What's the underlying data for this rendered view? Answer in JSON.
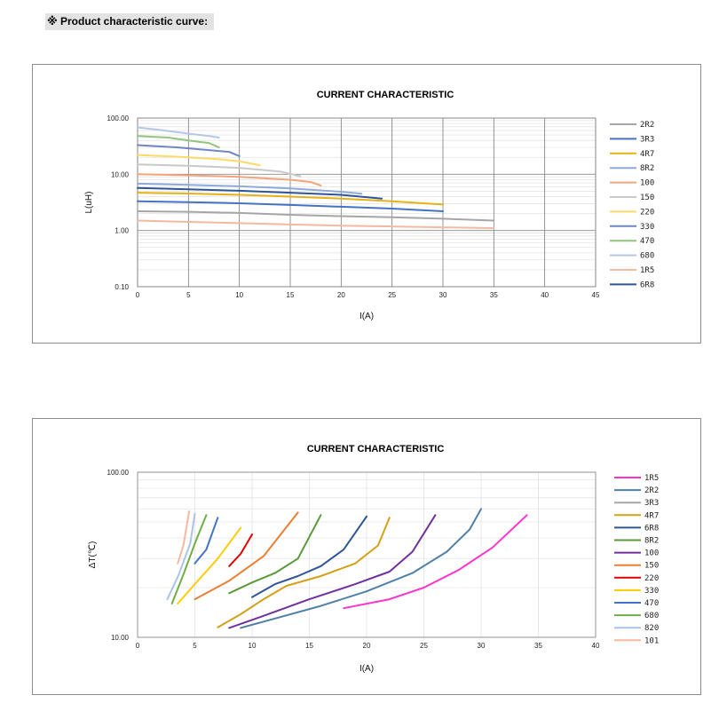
{
  "header": {
    "label": "※  Product characteristic curve:"
  },
  "chart_data": [
    {
      "type": "line",
      "title": "CURRENT CHARACTERISTIC",
      "xlabel": "I(A)",
      "ylabel": "L(uH)",
      "xlim": [
        0,
        45
      ],
      "ylim": [
        0.1,
        100
      ],
      "yscale": "log",
      "xticks": [
        0,
        5,
        10,
        15,
        20,
        25,
        30,
        35,
        40,
        45
      ],
      "yticks": [
        0.1,
        1,
        10,
        100
      ],
      "ytick_labels": [
        "0.10",
        "1.00",
        "10.00",
        "100.00"
      ],
      "grid": true,
      "legend_position": "right",
      "series": [
        {
          "name": "2R2",
          "color": "#a6a6a6",
          "points": [
            [
              0,
              2.2
            ],
            [
              5,
              2.15
            ],
            [
              10,
              2.05
            ],
            [
              15,
              1.9
            ],
            [
              20,
              1.8
            ],
            [
              25,
              1.72
            ],
            [
              30,
              1.62
            ],
            [
              35,
              1.5
            ]
          ]
        },
        {
          "name": "3R3",
          "color": "#4472c4",
          "points": [
            [
              0,
              3.3
            ],
            [
              5,
              3.2
            ],
            [
              10,
              3.05
            ],
            [
              15,
              2.85
            ],
            [
              20,
              2.65
            ],
            [
              25,
              2.45
            ],
            [
              30,
              2.2
            ]
          ]
        },
        {
          "name": "4R7",
          "color": "#e6b117",
          "points": [
            [
              0,
              4.7
            ],
            [
              5,
              4.55
            ],
            [
              10,
              4.3
            ],
            [
              15,
              4.0
            ],
            [
              20,
              3.7
            ],
            [
              25,
              3.3
            ],
            [
              30,
              2.9
            ]
          ]
        },
        {
          "name": "8R2",
          "color": "#8eaadb",
          "points": [
            [
              0,
              6.8
            ],
            [
              5,
              6.5
            ],
            [
              10,
              6.1
            ],
            [
              15,
              5.6
            ],
            [
              20,
              4.9
            ],
            [
              22,
              4.5
            ]
          ]
        },
        {
          "name": "100",
          "color": "#f4a47c",
          "points": [
            [
              0,
              10
            ],
            [
              5,
              9.6
            ],
            [
              10,
              9
            ],
            [
              15,
              8
            ],
            [
              17,
              7.3
            ],
            [
              18,
              6.3
            ]
          ]
        },
        {
          "name": "150",
          "color": "#c9c9c9",
          "points": [
            [
              0,
              15
            ],
            [
              5,
              14.2
            ],
            [
              10,
              13
            ],
            [
              14,
              11.2
            ],
            [
              16,
              9.2
            ]
          ]
        },
        {
          "name": "220",
          "color": "#ffd966",
          "points": [
            [
              0,
              22
            ],
            [
              4,
              20.5
            ],
            [
              8,
              18.5
            ],
            [
              10,
              17
            ],
            [
              12,
              14.5
            ]
          ]
        },
        {
          "name": "330",
          "color": "#7086c4",
          "points": [
            [
              0,
              33
            ],
            [
              4,
              30
            ],
            [
              8,
              26
            ],
            [
              9,
              25
            ],
            [
              10,
              21
            ]
          ]
        },
        {
          "name": "470",
          "color": "#92c47d",
          "points": [
            [
              0,
              48
            ],
            [
              3,
              45
            ],
            [
              5,
              40
            ],
            [
              7,
              36
            ],
            [
              8,
              30
            ]
          ]
        },
        {
          "name": "680",
          "color": "#b4c7e7",
          "points": [
            [
              0,
              68
            ],
            [
              2,
              62
            ],
            [
              5,
              53
            ],
            [
              7,
              48
            ],
            [
              8,
              45
            ]
          ]
        },
        {
          "name": "1R5",
          "color": "#f4b9a0",
          "points": [
            [
              0,
              1.5
            ],
            [
              5,
              1.42
            ],
            [
              10,
              1.35
            ],
            [
              15,
              1.28
            ],
            [
              20,
              1.22
            ],
            [
              25,
              1.18
            ],
            [
              30,
              1.14
            ],
            [
              35,
              1.1
            ]
          ]
        },
        {
          "name": "6R8",
          "color": "#2f5597",
          "points": [
            [
              0,
              5.7
            ],
            [
              5,
              5.4
            ],
            [
              10,
              5.1
            ],
            [
              15,
              4.7
            ],
            [
              20,
              4.3
            ],
            [
              24,
              3.7
            ]
          ]
        }
      ]
    },
    {
      "type": "line",
      "title": "CURRENT CHARACTERISTIC",
      "xlabel": "I(A)",
      "ylabel": "ΔT(℃)",
      "xlim": [
        0,
        40
      ],
      "ylim": [
        10,
        100
      ],
      "yscale": "log",
      "xticks": [
        0,
        5,
        10,
        15,
        20,
        25,
        30,
        35,
        40
      ],
      "yticks": [
        10,
        100
      ],
      "ytick_labels": [
        "10.00",
        "100.00"
      ],
      "grid": true,
      "legend_position": "right",
      "series": [
        {
          "name": "1R5",
          "color": "#ff33cc",
          "points": [
            [
              18,
              15
            ],
            [
              22,
              17
            ],
            [
              25,
              20
            ],
            [
              28,
              25.5
            ],
            [
              31,
              35
            ],
            [
              34,
              55
            ]
          ]
        },
        {
          "name": "2R2",
          "color": "#4f81a8",
          "points": [
            [
              9,
              11.4
            ],
            [
              12,
              13
            ],
            [
              16,
              15.5
            ],
            [
              20,
              19
            ],
            [
              24,
              24.5
            ],
            [
              27,
              33
            ],
            [
              29,
              45
            ],
            [
              30,
              60
            ]
          ]
        },
        {
          "name": "3R3",
          "color": "#a6a6a6",
          "points": []
        },
        {
          "name": "4R7",
          "color": "#d4a017",
          "points": [
            [
              7,
              11.5
            ],
            [
              9,
              13.8
            ],
            [
              11,
              17
            ],
            [
              13,
              20.5
            ],
            [
              16,
              23.5
            ],
            [
              19,
              28
            ],
            [
              21,
              36
            ],
            [
              22,
              53
            ]
          ]
        },
        {
          "name": "6R8",
          "color": "#2f5597",
          "points": [
            [
              10,
              17.5
            ],
            [
              12,
              21
            ],
            [
              14,
              23.5
            ],
            [
              16,
              27
            ],
            [
              18,
              34
            ],
            [
              20,
              54
            ]
          ]
        },
        {
          "name": "8R2",
          "color": "#5a9a3a",
          "points": [
            [
              8,
              18.5
            ],
            [
              10,
              21.5
            ],
            [
              12,
              24.5
            ],
            [
              14,
              30
            ],
            [
              16,
              55
            ]
          ]
        },
        {
          "name": "100",
          "color": "#7030a0",
          "points": [
            [
              8,
              11.4
            ],
            [
              11,
              13.5
            ],
            [
              15,
              17
            ],
            [
              19,
              21
            ],
            [
              22,
              25
            ],
            [
              24,
              33
            ],
            [
              26,
              55
            ]
          ]
        },
        {
          "name": "150",
          "color": "#ed7d31",
          "points": [
            [
              5,
              17
            ],
            [
              8,
              22
            ],
            [
              11,
              31
            ],
            [
              14,
              57
            ]
          ]
        },
        {
          "name": "220",
          "color": "#e00000",
          "points": [
            [
              8,
              27
            ],
            [
              9,
              32
            ],
            [
              10,
              42
            ]
          ]
        },
        {
          "name": "330",
          "color": "#ffcc00",
          "points": [
            [
              3.5,
              16
            ],
            [
              5,
              21
            ],
            [
              7,
              30
            ],
            [
              9,
              46
            ]
          ]
        },
        {
          "name": "470",
          "color": "#4472c4",
          "points": [
            [
              5,
              28
            ],
            [
              6,
              34
            ],
            [
              7,
              53
            ]
          ]
        },
        {
          "name": "680",
          "color": "#70ad47",
          "points": [
            [
              3,
              16
            ],
            [
              4,
              24
            ],
            [
              5,
              37
            ],
            [
              6,
              55
            ]
          ]
        },
        {
          "name": "820",
          "color": "#a9c4e6",
          "points": [
            [
              2.6,
              17
            ],
            [
              3.6,
              24
            ],
            [
              4.6,
              37
            ],
            [
              5,
              56
            ]
          ]
        },
        {
          "name": "101",
          "color": "#f8b8a0",
          "points": [
            [
              3.5,
              28
            ],
            [
              4,
              36
            ],
            [
              4.5,
              58
            ]
          ]
        }
      ]
    }
  ]
}
